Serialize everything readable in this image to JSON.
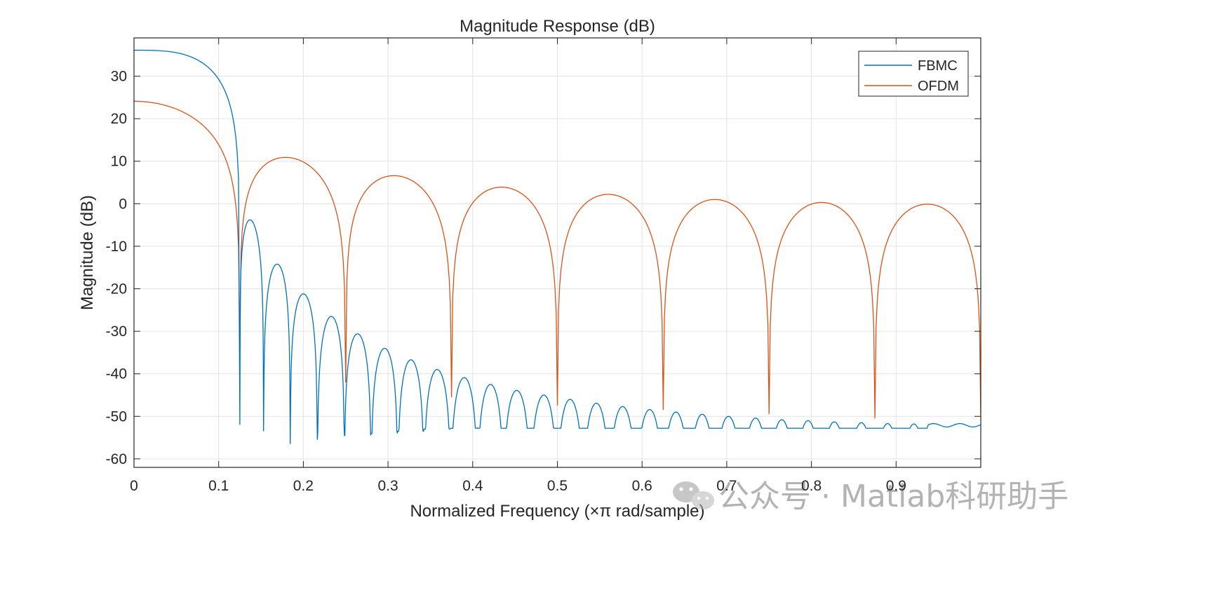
{
  "chart_data": {
    "type": "line",
    "title": "Magnitude Response (dB)",
    "xlabel": "Normalized Frequency (×π rad/sample)",
    "ylabel": "Magnitude (dB)",
    "xlim": [
      0,
      1
    ],
    "ylim": [
      -62,
      39
    ],
    "xticks": [
      0,
      0.1,
      0.2,
      0.3,
      0.4,
      0.5,
      0.6,
      0.7,
      0.8,
      0.9
    ],
    "xtick_labels": [
      "0",
      "0.1",
      "0.2",
      "0.3",
      "0.4",
      "0.5",
      "0.6",
      "0.7",
      "0.8",
      "0.9"
    ],
    "yticks": [
      30,
      20,
      10,
      0,
      -10,
      -20,
      -30,
      -40,
      -50,
      -60
    ],
    "ytick_labels": [
      "30",
      "20",
      "10",
      "0",
      "-10",
      "-20",
      "-30",
      "-40",
      "-50",
      "-60"
    ],
    "grid": true,
    "legend_position": "top-right",
    "series": [
      {
        "name": "FBMC",
        "color": "#0072BD",
        "dc_value": 36.1,
        "main_lobe_null": 0.125,
        "sidelobe_peaks": [
          {
            "x": 0.137,
            "y": -3.8
          },
          {
            "x": 0.169,
            "y": -14.2
          },
          {
            "x": 0.2,
            "y": -21.2
          },
          {
            "x": 0.233,
            "y": -26.5
          },
          {
            "x": 0.264,
            "y": -30.6
          },
          {
            "x": 0.296,
            "y": -34.0
          },
          {
            "x": 0.327,
            "y": -36.7
          },
          {
            "x": 0.358,
            "y": -39.0
          },
          {
            "x": 0.39,
            "y": -40.9
          },
          {
            "x": 0.421,
            "y": -42.5
          },
          {
            "x": 0.452,
            "y": -43.9
          },
          {
            "x": 0.484,
            "y": -45.0
          },
          {
            "x": 0.515,
            "y": -46.0
          },
          {
            "x": 0.546,
            "y": -46.9
          },
          {
            "x": 0.577,
            "y": -47.7
          },
          {
            "x": 0.609,
            "y": -48.4
          },
          {
            "x": 0.64,
            "y": -49.0
          },
          {
            "x": 0.671,
            "y": -49.5
          },
          {
            "x": 0.702,
            "y": -50.0
          },
          {
            "x": 0.734,
            "y": -50.4
          },
          {
            "x": 0.765,
            "y": -50.8
          },
          {
            "x": 0.796,
            "y": -51.0
          },
          {
            "x": 0.827,
            "y": -51.3
          },
          {
            "x": 0.859,
            "y": -51.5
          },
          {
            "x": 0.89,
            "y": -51.7
          },
          {
            "x": 0.921,
            "y": -51.8
          }
        ],
        "tail_level": -52.1
      },
      {
        "name": "OFDM",
        "color": "#D95319",
        "dc_value": 24.1,
        "nulls": [
          0.125,
          0.25,
          0.375,
          0.5,
          0.625,
          0.75,
          0.875,
          1.0
        ],
        "sidelobe_peaks": [
          {
            "x": 0.179,
            "y": 10.9
          },
          {
            "x": 0.307,
            "y": 6.6
          },
          {
            "x": 0.434,
            "y": 3.9
          },
          {
            "x": 0.56,
            "y": 2.2
          },
          {
            "x": 0.686,
            "y": 1.0
          },
          {
            "x": 0.812,
            "y": 0.3
          },
          {
            "x": 0.937,
            "y": -0.1
          }
        ],
        "null_depths": [
          -36.0,
          -42.0,
          -45.5,
          -47.5,
          -48.5,
          -49.5,
          -50.5,
          -50.5
        ]
      }
    ]
  },
  "watermark": {
    "text": "公众号 · Matlab科研助手",
    "icon": "wechat-icon"
  }
}
